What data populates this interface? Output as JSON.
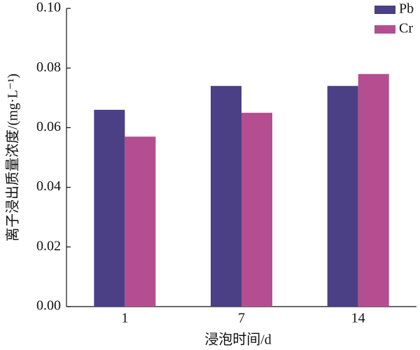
{
  "chart_data": {
    "type": "bar",
    "x_label": "浸泡时间/d",
    "y_label": "离子浸出质量浓度/(mg·L⁻¹)",
    "categories": [
      "1",
      "7",
      "14"
    ],
    "series": [
      {
        "name": "Pb",
        "color": "#4b3f86",
        "values": [
          0.066,
          0.074,
          0.074
        ]
      },
      {
        "name": "Cr",
        "color": "#b44e90",
        "values": [
          0.057,
          0.065,
          0.078
        ]
      }
    ],
    "ylim": [
      0,
      0.1
    ],
    "yticks": [
      {
        "value": 0,
        "label": "0.00"
      },
      {
        "value": 0.02,
        "label": "0.02"
      },
      {
        "value": 0.04,
        "label": "0.04"
      },
      {
        "value": 0.06,
        "label": "0.06"
      },
      {
        "value": 0.08,
        "label": "0.08"
      },
      {
        "value": 0.1,
        "label": "0.10"
      }
    ],
    "legend": "top-right"
  }
}
